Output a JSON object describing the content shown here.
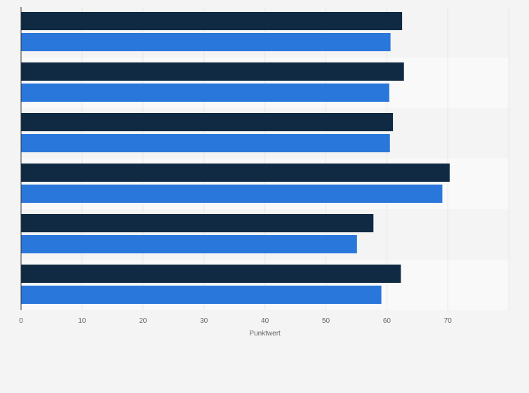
{
  "chart_data": {
    "type": "bar",
    "orientation": "horizontal",
    "title": "",
    "xlabel": "Punktwert",
    "ylabel": "",
    "xlim": [
      0,
      80
    ],
    "xticks": [
      0,
      10,
      20,
      30,
      40,
      50,
      60,
      70
    ],
    "grid": true,
    "legend": "none",
    "categories": [
      "",
      "",
      "",
      "",
      "",
      ""
    ],
    "series": [
      {
        "color": "#0f2a42",
        "values": [
          62.5,
          62.8,
          61,
          70.3,
          57.8,
          62.3
        ]
      },
      {
        "color": "#2a77db",
        "values": [
          60.6,
          60.4,
          60.5,
          69.1,
          55.1,
          59.1
        ]
      }
    ]
  },
  "colors": {
    "background": "#f4f4f4",
    "band_alternate": "#f9f9f9",
    "grid": "#e6e6e6",
    "axis": "#333333",
    "tick_text": "#666666"
  }
}
